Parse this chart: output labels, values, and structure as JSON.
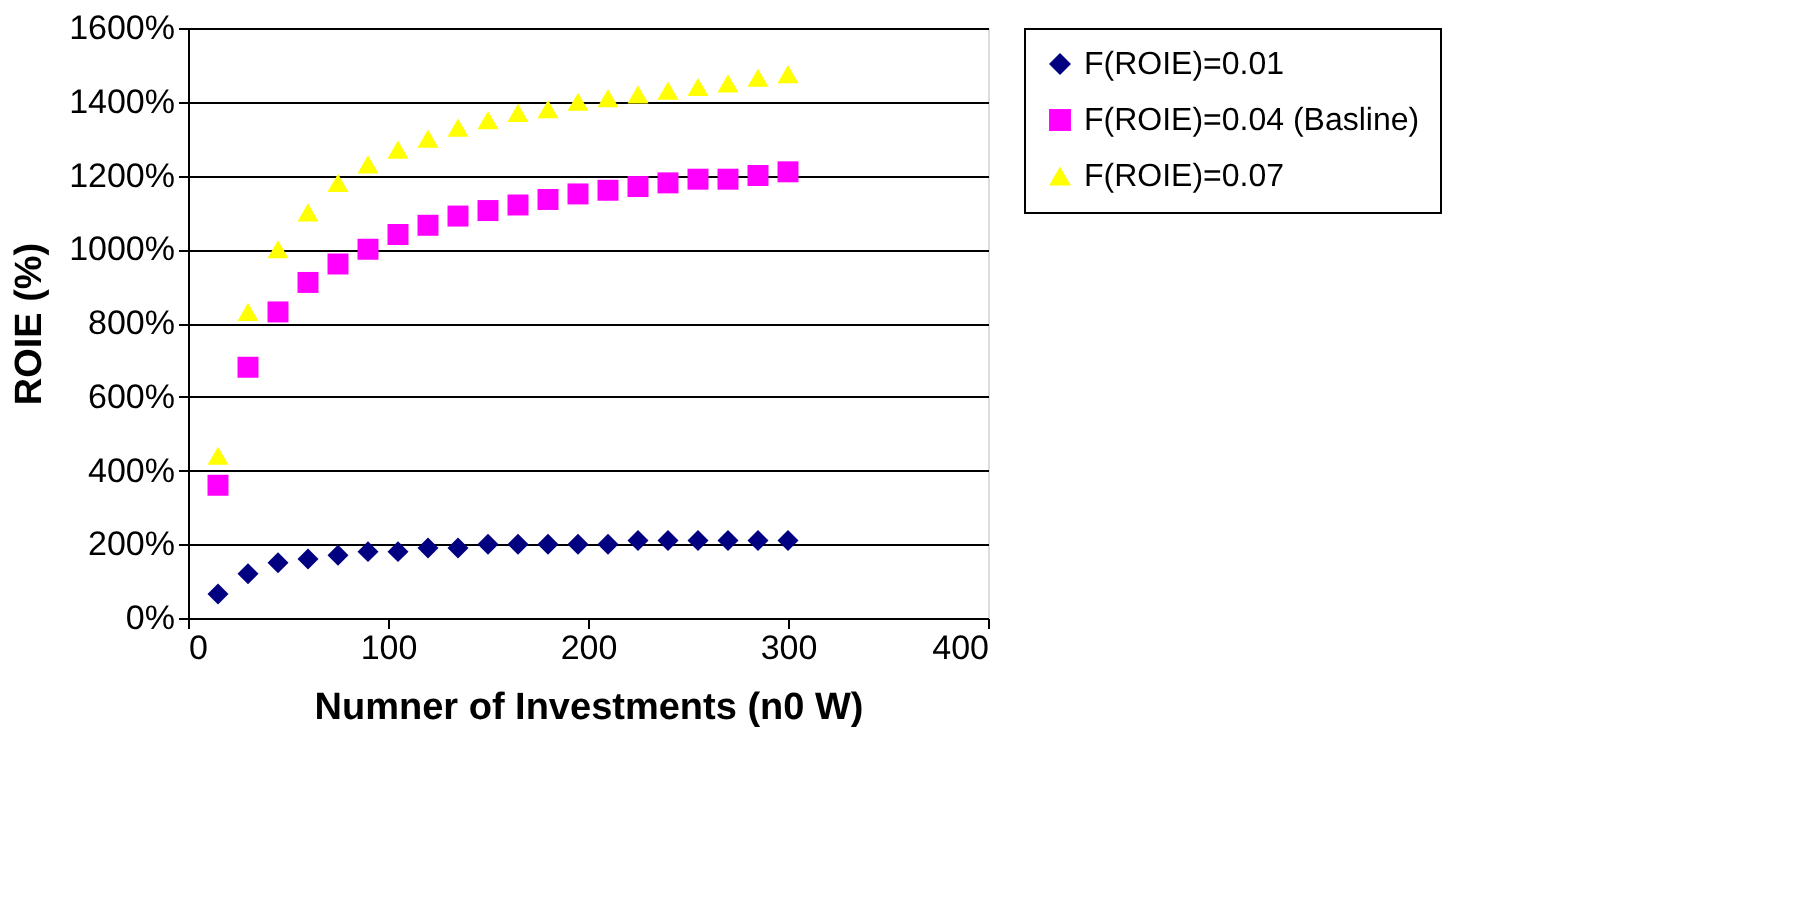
{
  "chart_data": {
    "type": "scatter",
    "xlabel": "Numner of Investments (n0 W)",
    "ylabel": "ROIE (%)",
    "x": [
      15,
      30,
      45,
      60,
      75,
      90,
      105,
      120,
      135,
      150,
      165,
      180,
      195,
      210,
      225,
      240,
      255,
      270,
      285,
      300
    ],
    "series": [
      {
        "name": "F(ROIE)=0.01",
        "color": "#000080",
        "marker": "diamond",
        "values": [
          65,
          120,
          150,
          160,
          170,
          180,
          180,
          190,
          190,
          200,
          200,
          200,
          200,
          200,
          210,
          210,
          210,
          210,
          210,
          210
        ]
      },
      {
        "name": "F(ROIE)=0.04 (Basline)",
        "color": "#ff00ff",
        "marker": "square",
        "values": [
          360,
          680,
          830,
          910,
          960,
          1000,
          1040,
          1065,
          1090,
          1105,
          1120,
          1135,
          1150,
          1160,
          1170,
          1180,
          1190,
          1190,
          1200,
          1210
        ]
      },
      {
        "name": "F(ROIE)=0.07",
        "color": "#ffff00",
        "marker": "triangle",
        "values": [
          440,
          830,
          1000,
          1100,
          1180,
          1230,
          1270,
          1300,
          1330,
          1350,
          1370,
          1380,
          1400,
          1410,
          1420,
          1430,
          1440,
          1450,
          1465,
          1475
        ]
      }
    ],
    "xlim": [
      0,
      400
    ],
    "xticks": [
      0,
      100,
      200,
      300,
      400
    ],
    "ylim": [
      0,
      1600
    ],
    "yticks": [
      {
        "value": 0,
        "label": "0%"
      },
      {
        "value": 200,
        "label": "200%"
      },
      {
        "value": 400,
        "label": "400%"
      },
      {
        "value": 600,
        "label": "600%"
      },
      {
        "value": 800,
        "label": "800%"
      },
      {
        "value": 1000,
        "label": "1000%"
      },
      {
        "value": 1200,
        "label": "1200%"
      },
      {
        "value": 1400,
        "label": "1400%"
      },
      {
        "value": 1600,
        "label": "1600%"
      }
    ],
    "grid": "y",
    "legend": "right"
  }
}
